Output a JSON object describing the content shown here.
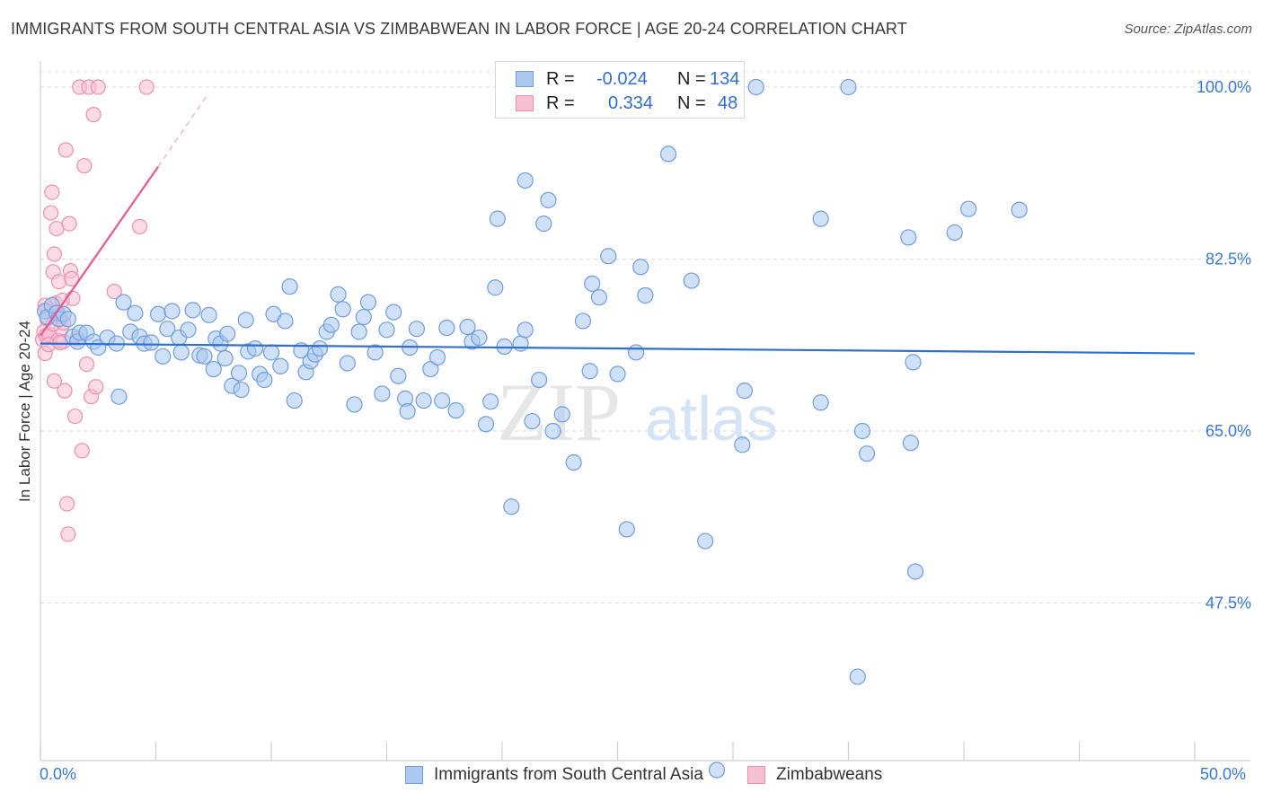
{
  "header": {
    "title": "IMMIGRANTS FROM SOUTH CENTRAL ASIA VS ZIMBABWEAN IN LABOR FORCE | AGE 20-24 CORRELATION CHART",
    "source": "Source: ZipAtlas.com"
  },
  "watermark": {
    "zip": "ZIP",
    "atlas": "atlas"
  },
  "legend": {
    "r_label": "R =",
    "n_label": "N =",
    "items": [
      {
        "r": "-0.024",
        "n": "134"
      },
      {
        "r": "0.334",
        "n": "48"
      }
    ]
  },
  "chart_data": {
    "type": "scatter",
    "title": "IMMIGRANTS FROM SOUTH CENTRAL ASIA VS ZIMBABWEAN IN LABOR FORCE | AGE 20-24 CORRELATION CHART",
    "xlabel": "",
    "ylabel": "In Labor Force | Age 20-24",
    "xlim": [
      0,
      50
    ],
    "ylim": [
      31.5,
      102
    ],
    "x_tick_labels": [
      "0.0%",
      "50.0%"
    ],
    "y_ticks": [
      {
        "value": 100.0,
        "label": "100.0%"
      },
      {
        "value": 82.5,
        "label": "82.5%"
      },
      {
        "value": 65.0,
        "label": "65.0%"
      },
      {
        "value": 47.5,
        "label": "47.5%"
      }
    ],
    "grid": true,
    "legend_position": "top-center",
    "colors": {
      "blue_fill": "#aac8f0",
      "blue_stroke": "#6f9de0",
      "blue_line": "#2f6fd0",
      "pink_fill": "#f7bfd2",
      "pink_stroke": "#ee8fb0",
      "pink_line": "#e8588e",
      "tick_label": "#3a78d4",
      "grid": "#d9d9d9"
    },
    "series": [
      {
        "name": "Immigrants from South Central Asia",
        "color": "#aac8f0",
        "trend": {
          "x": [
            0,
            50
          ],
          "y": [
            73.9,
            72.9
          ]
        },
        "points": [
          [
            0.2,
            77.2
          ],
          [
            0.3,
            76.6
          ],
          [
            0.5,
            77.8
          ],
          [
            0.7,
            77.0
          ],
          [
            0.8,
            76.4
          ],
          [
            1.0,
            76.9
          ],
          [
            1.2,
            76.4
          ],
          [
            1.4,
            74.6
          ],
          [
            1.6,
            74.1
          ],
          [
            1.7,
            75.0
          ],
          [
            2.0,
            75.0
          ],
          [
            2.3,
            74.1
          ],
          [
            2.5,
            73.5
          ],
          [
            2.9,
            74.5
          ],
          [
            3.3,
            73.9
          ],
          [
            3.4,
            68.5
          ],
          [
            3.6,
            78.1
          ],
          [
            3.9,
            75.1
          ],
          [
            4.1,
            77.0
          ],
          [
            4.3,
            74.6
          ],
          [
            4.5,
            73.9
          ],
          [
            4.8,
            74.0
          ],
          [
            5.1,
            76.9
          ],
          [
            5.3,
            72.6
          ],
          [
            5.5,
            75.4
          ],
          [
            5.7,
            77.2
          ],
          [
            6.0,
            74.5
          ],
          [
            6.1,
            73.0
          ],
          [
            6.4,
            75.3
          ],
          [
            6.6,
            77.3
          ],
          [
            6.9,
            72.7
          ],
          [
            7.1,
            72.6
          ],
          [
            7.3,
            76.8
          ],
          [
            7.5,
            71.3
          ],
          [
            7.6,
            74.4
          ],
          [
            7.8,
            73.9
          ],
          [
            8.0,
            72.4
          ],
          [
            8.1,
            74.9
          ],
          [
            8.3,
            69.6
          ],
          [
            8.6,
            70.9
          ],
          [
            8.7,
            69.2
          ],
          [
            8.9,
            76.3
          ],
          [
            9.0,
            73.1
          ],
          [
            9.3,
            73.4
          ],
          [
            9.5,
            70.8
          ],
          [
            9.7,
            70.2
          ],
          [
            10.0,
            73.0
          ],
          [
            10.1,
            76.9
          ],
          [
            10.4,
            71.6
          ],
          [
            10.6,
            76.2
          ],
          [
            10.8,
            79.7
          ],
          [
            11.0,
            68.1
          ],
          [
            11.3,
            73.2
          ],
          [
            11.5,
            71.0
          ],
          [
            11.7,
            72.1
          ],
          [
            11.9,
            72.8
          ],
          [
            12.1,
            73.4
          ],
          [
            12.4,
            75.1
          ],
          [
            12.6,
            75.8
          ],
          [
            12.9,
            78.9
          ],
          [
            13.1,
            77.4
          ],
          [
            13.3,
            71.9
          ],
          [
            13.6,
            67.7
          ],
          [
            13.8,
            75.1
          ],
          [
            14.0,
            76.6
          ],
          [
            14.2,
            78.1
          ],
          [
            14.5,
            73.0
          ],
          [
            14.8,
            68.8
          ],
          [
            15.0,
            75.3
          ],
          [
            15.3,
            77.1
          ],
          [
            15.5,
            70.6
          ],
          [
            15.8,
            68.3
          ],
          [
            15.9,
            67.0
          ],
          [
            16.0,
            73.5
          ],
          [
            16.3,
            75.4
          ],
          [
            16.6,
            68.1
          ],
          [
            16.9,
            71.3
          ],
          [
            17.2,
            72.5
          ],
          [
            17.4,
            68.1
          ],
          [
            17.6,
            75.5
          ],
          [
            18.0,
            67.1
          ],
          [
            18.5,
            75.6
          ],
          [
            18.7,
            74.1
          ],
          [
            19.0,
            74.5
          ],
          [
            19.3,
            65.7
          ],
          [
            19.5,
            68.0
          ],
          [
            19.7,
            79.6
          ],
          [
            19.8,
            86.6
          ],
          [
            20.1,
            73.6
          ],
          [
            20.4,
            57.3
          ],
          [
            20.8,
            73.9
          ],
          [
            21.0,
            75.3
          ],
          [
            21.0,
            90.5
          ],
          [
            21.3,
            66.0
          ],
          [
            21.6,
            70.2
          ],
          [
            21.8,
            86.1
          ],
          [
            22.0,
            88.5
          ],
          [
            22.2,
            65.0
          ],
          [
            22.6,
            66.7
          ],
          [
            23.1,
            61.8
          ],
          [
            23.5,
            76.2
          ],
          [
            23.8,
            71.1
          ],
          [
            23.9,
            80.0
          ],
          [
            24.2,
            78.6
          ],
          [
            24.6,
            82.8
          ],
          [
            24.8,
            100.2
          ],
          [
            25.0,
            70.8
          ],
          [
            25.4,
            55.0
          ],
          [
            25.8,
            73.0
          ],
          [
            26.0,
            81.7
          ],
          [
            26.2,
            78.8
          ],
          [
            27.2,
            93.2
          ],
          [
            28.2,
            80.3
          ],
          [
            28.8,
            53.8
          ],
          [
            29.3,
            30.5
          ],
          [
            30.4,
            63.6
          ],
          [
            30.5,
            69.1
          ],
          [
            31.0,
            100.0
          ],
          [
            33.8,
            86.6
          ],
          [
            33.8,
            67.9
          ],
          [
            35.0,
            100.0
          ],
          [
            35.4,
            40.0
          ],
          [
            35.6,
            65.0
          ],
          [
            35.8,
            62.7
          ],
          [
            37.6,
            84.7
          ],
          [
            37.7,
            63.8
          ],
          [
            37.8,
            72.0
          ],
          [
            37.9,
            50.7
          ],
          [
            39.6,
            85.2
          ],
          [
            40.2,
            87.6
          ],
          [
            42.4,
            87.5
          ]
        ]
      },
      {
        "name": "Zimbabweans",
        "color": "#f7bfd2",
        "trend": {
          "x": [
            0,
            5.1
          ],
          "y": [
            74.7,
            91.9
          ],
          "dash_to": [
            7.2,
            99.1
          ]
        },
        "points": [
          [
            0.1,
            74.3
          ],
          [
            0.15,
            75.1
          ],
          [
            0.2,
            72.9
          ],
          [
            0.25,
            74.7
          ],
          [
            0.3,
            76.4
          ],
          [
            0.35,
            77.4
          ],
          [
            0.4,
            74.8
          ],
          [
            0.45,
            87.2
          ],
          [
            0.5,
            89.3
          ],
          [
            0.55,
            81.2
          ],
          [
            0.6,
            70.1
          ],
          [
            0.6,
            83.0
          ],
          [
            0.65,
            78.0
          ],
          [
            0.7,
            85.6
          ],
          [
            0.75,
            74.2
          ],
          [
            0.8,
            80.2
          ],
          [
            0.85,
            76.6
          ],
          [
            0.9,
            75.4
          ],
          [
            0.95,
            78.3
          ],
          [
            1.0,
            74.1
          ],
          [
            1.05,
            69.1
          ],
          [
            1.1,
            93.6
          ],
          [
            1.15,
            57.6
          ],
          [
            1.2,
            54.5
          ],
          [
            1.25,
            86.1
          ],
          [
            1.3,
            81.3
          ],
          [
            1.35,
            80.5
          ],
          [
            1.4,
            78.5
          ],
          [
            1.5,
            66.5
          ],
          [
            1.6,
            74.4
          ],
          [
            1.7,
            100.0
          ],
          [
            1.8,
            63.0
          ],
          [
            1.9,
            92.0
          ],
          [
            2.0,
            71.8
          ],
          [
            2.1,
            100.0
          ],
          [
            2.2,
            68.5
          ],
          [
            2.3,
            97.2
          ],
          [
            2.4,
            69.5
          ],
          [
            2.5,
            100.0
          ],
          [
            3.2,
            79.2
          ],
          [
            4.3,
            85.8
          ],
          [
            4.6,
            100.0
          ],
          [
            0.55,
            75.9
          ],
          [
            0.75,
            77.1
          ],
          [
            1.0,
            76.0
          ],
          [
            0.35,
            73.8
          ],
          [
            0.2,
            77.8
          ],
          [
            0.85,
            74.0
          ]
        ]
      }
    ]
  }
}
